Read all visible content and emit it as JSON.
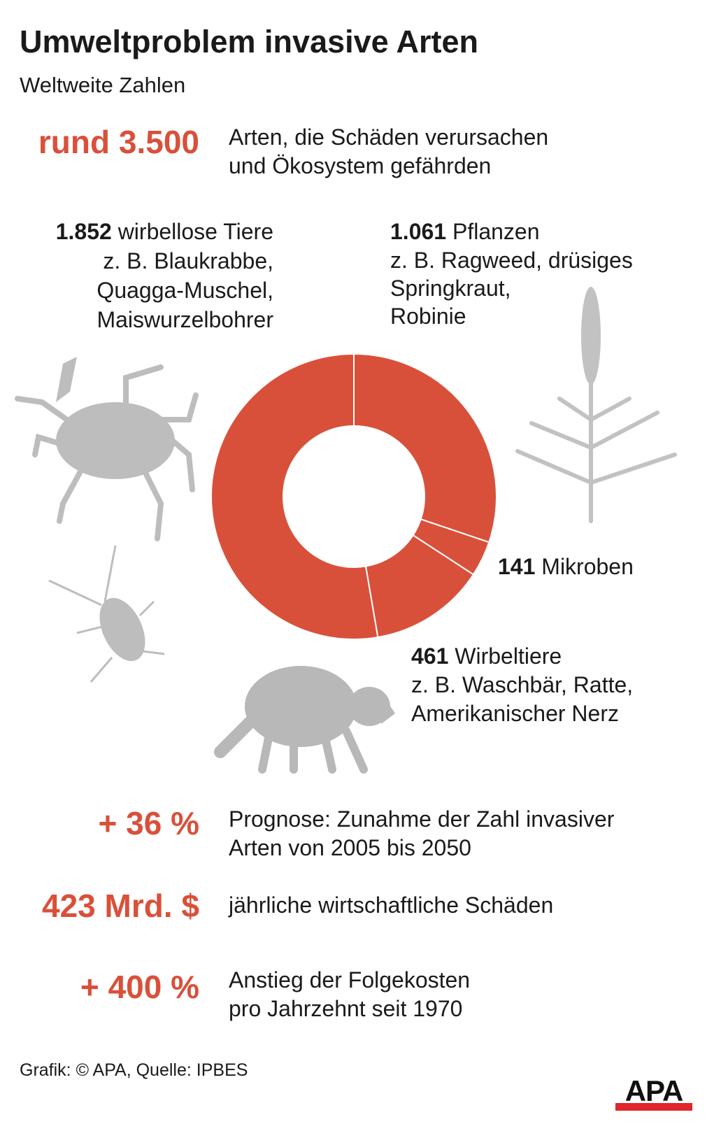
{
  "header": {
    "title": "Umweltproblem invasive Arten",
    "subtitle": "Weltweite Zahlen"
  },
  "stats": [
    {
      "value": "rund 3.500",
      "line1": "Arten, die Schäden verursachen",
      "line2": "und Ökosystem gefährden"
    },
    {
      "value": "+ 36 %",
      "line1": "Prognose: Zunahme der Zahl invasiver",
      "line2": "Arten von 2005 bis 2050"
    },
    {
      "value": "423 Mrd. $",
      "line1": "jährliche wirtschaftliche Schäden",
      "line2": ""
    },
    {
      "value": "+ 400 %",
      "line1": "Anstieg der Folgekosten",
      "line2": "pro Jahrzehnt seit 1970"
    }
  ],
  "chart_data": {
    "type": "pie",
    "variant": "donut",
    "start": "top, clockwise",
    "categories": [
      "Pflanzen",
      "Mikroben",
      "Wirbeltiere",
      "wirbellose Tiere"
    ],
    "values": [
      1061,
      141,
      461,
      1852
    ],
    "labels": [
      {
        "count": "1.061",
        "name": "Pflanzen",
        "examples": [
          "z. B. Ragweed, drüsiges",
          "Springkraut,",
          "Robinie"
        ]
      },
      {
        "count": "141",
        "name": "Mikroben",
        "examples": []
      },
      {
        "count": "461",
        "name": "Wirbeltiere",
        "examples": [
          "z. B. Waschbär, Ratte,",
          "Amerikanischer Nerz"
        ]
      },
      {
        "count": "1.852",
        "name": "wirbellose Tiere",
        "examples": [
          "z. B. Blaukrabbe,",
          "Quagga-Muschel,",
          "Maiswurzelbohrer"
        ]
      }
    ],
    "color": "#d9503a"
  },
  "footer": {
    "credit": "Grafik: © APA, Quelle: IPBES",
    "logo": "APA"
  },
  "colors": {
    "accent": "#d9503a",
    "illustration": "#b8b8b8"
  }
}
